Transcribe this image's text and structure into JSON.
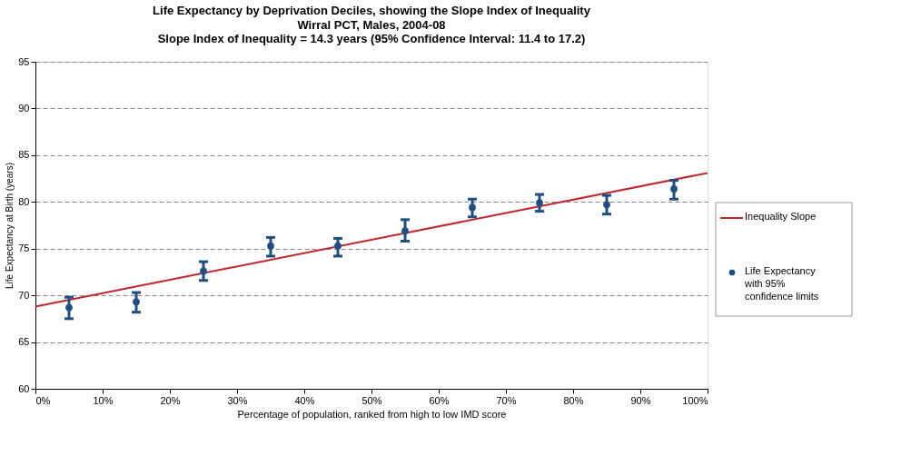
{
  "chart_data": {
    "type": "scatter",
    "title": "Life Expectancy by Deprivation Deciles, showing the Slope Index of Inequality",
    "subtitle": [
      "Wirral PCT, Males, 2004-08",
      "Slope Index of Inequality = 14.3 years (95% Confidence Interval: 11.4 to 17.2)"
    ],
    "xlabel": "Percentage of population, ranked from high to low IMD score",
    "ylabel": "Life Expectancy at Birth (years)",
    "xlim": [
      0,
      100
    ],
    "xticks": [
      {
        "value": 0,
        "label": "0%"
      },
      {
        "value": 10,
        "label": "10%"
      },
      {
        "value": 20,
        "label": "20%"
      },
      {
        "value": 30,
        "label": "30%"
      },
      {
        "value": 40,
        "label": "40%"
      },
      {
        "value": 50,
        "label": "50%"
      },
      {
        "value": 60,
        "label": "60%"
      },
      {
        "value": 70,
        "label": "70%"
      },
      {
        "value": 80,
        "label": "80%"
      },
      {
        "value": 90,
        "label": "90%"
      },
      {
        "value": 100,
        "label": "100%"
      }
    ],
    "ylim": [
      60,
      95
    ],
    "yticks": [
      60,
      65,
      70,
      75,
      80,
      85,
      90,
      95
    ],
    "grid": "y",
    "legend": "right",
    "series": [
      {
        "name": "Inequality Slope",
        "type": "line",
        "color": "#c0272d",
        "line_style": "solid",
        "marker": "none",
        "x": [
          0,
          100
        ],
        "values": [
          68.8,
          83.1
        ]
      },
      {
        "name": "Life Expectancy with 95% confidence limits",
        "type": "scatter",
        "color": "#1f4e82",
        "marker": "circle",
        "x": [
          5,
          15,
          25,
          35,
          45,
          55,
          65,
          75,
          85,
          95
        ],
        "values": [
          68.7,
          69.3,
          72.6,
          75.3,
          75.3,
          76.9,
          79.4,
          79.9,
          79.7,
          81.4
        ],
        "errors": [
          [
            67.5,
            69.8
          ],
          [
            68.2,
            70.3
          ],
          [
            71.6,
            73.6
          ],
          [
            74.2,
            76.2
          ],
          [
            74.2,
            76.1
          ],
          [
            75.8,
            78.1
          ],
          [
            78.4,
            80.3
          ],
          [
            79.0,
            80.8
          ],
          [
            78.7,
            80.7
          ],
          [
            80.3,
            82.3
          ]
        ]
      }
    ]
  }
}
